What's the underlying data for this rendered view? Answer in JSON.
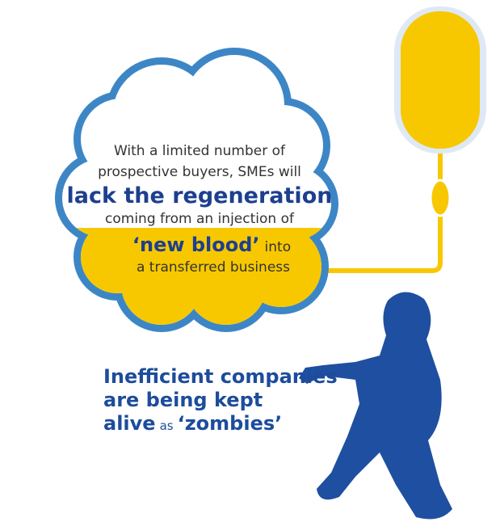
{
  "cloud": {
    "lines": [
      "With a limited number of",
      "prospective buyers, SMEs will"
    ],
    "emphasis": "lack the regeneration",
    "line_after": "coming from an injection of",
    "highlight": "‘new blood’",
    "highlight_tail": "into",
    "last_line": "a transferred business"
  },
  "caption": {
    "bold": [
      "Inefficient companies",
      "are being kept",
      "alive"
    ],
    "connector": "as",
    "highlight": "‘zombies’"
  }
}
